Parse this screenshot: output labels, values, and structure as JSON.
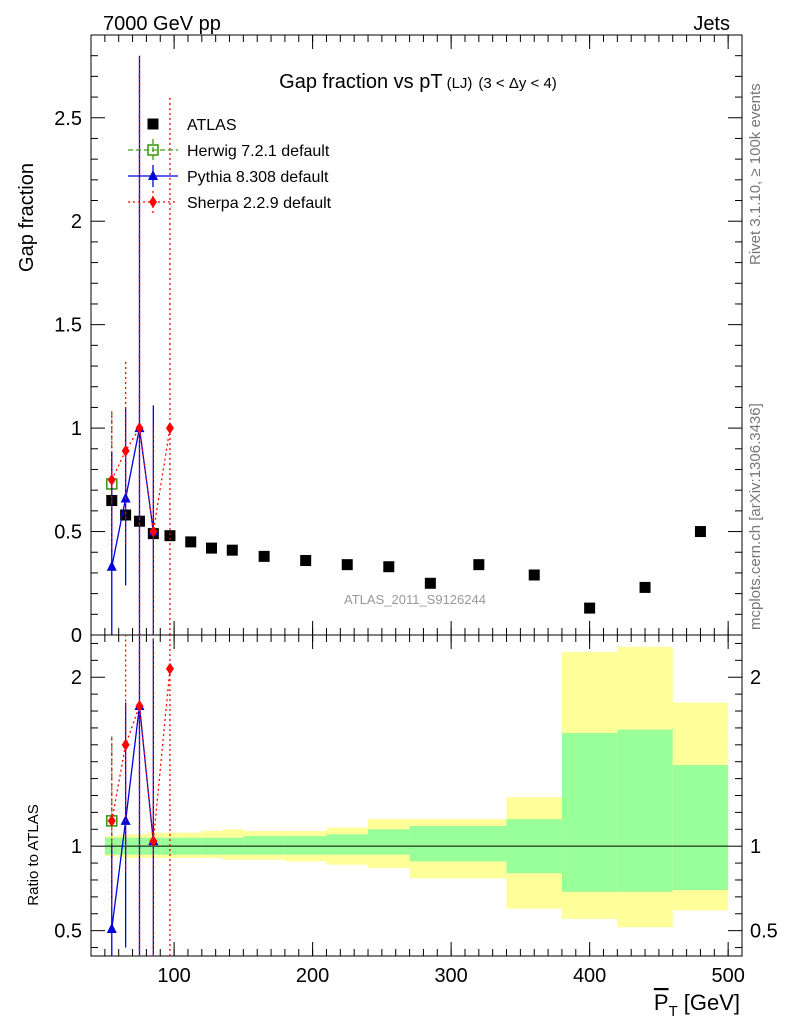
{
  "header": {
    "left": "7000 GeV pp",
    "right": "Jets"
  },
  "side_labels": {
    "rivet": "Rivet 3.1.10, ≥ 100k events",
    "mcplots": "mcplots.cern.ch [arXiv:1306.3436]"
  },
  "chart_data": [
    {
      "type": "scatter",
      "title": "Gap fraction vs pT",
      "title_suffix": "(LJ)",
      "title_range": "(3 < Δy < 4)",
      "ylabel": "Gap fraction",
      "watermark": "ATLAS_2011_S9126244",
      "xlim": [
        40,
        510
      ],
      "ylim": [
        0,
        2.9
      ],
      "yticks": [
        0,
        0.5,
        1,
        1.5,
        2,
        2.5
      ],
      "ytick_labels": [
        "0",
        "0.5",
        "1",
        "1.5",
        "2",
        "2.5"
      ],
      "legend_position": "top-left",
      "series": [
        {
          "name": "ATLAS",
          "color": "#000000",
          "marker": "square",
          "x": [
            55,
            65,
            75,
            85,
            97,
            112,
            127,
            142,
            165,
            195,
            225,
            255,
            285,
            320,
            360,
            400,
            440,
            480
          ],
          "y": [
            0.65,
            0.58,
            0.55,
            0.49,
            0.48,
            0.45,
            0.42,
            0.41,
            0.38,
            0.36,
            0.34,
            0.33,
            0.25,
            0.34,
            0.29,
            0.13,
            0.23,
            0.5
          ]
        },
        {
          "name": "Herwig 7.2.1 default",
          "color": "#3f9a17",
          "marker": "open-square",
          "x": [
            55
          ],
          "y": [
            0.73
          ],
          "err_lo": [
            0.33
          ],
          "err_hi": [
            0.35
          ]
        },
        {
          "name": "Pythia 8.308 default",
          "color": "#0000dd",
          "marker": "triangle",
          "x": [
            55,
            65,
            75,
            85
          ],
          "y": [
            0.33,
            0.66,
            1.0,
            0.5
          ],
          "err_lo": [
            0.33,
            0.42,
            1.0,
            0.5
          ],
          "err_hi": [
            0.55,
            0.44,
            1.8,
            0.61
          ]
        },
        {
          "name": "Sherpa 2.2.9 default",
          "color": "#ff0000",
          "marker": "diamond",
          "x": [
            55,
            65,
            75,
            85,
            97
          ],
          "y": [
            0.75,
            0.89,
            1.0,
            0.5,
            1.0
          ],
          "err_lo": [
            0.33,
            0.45,
            1.0,
            0.5,
            1.0
          ],
          "err_hi": [
            0.33,
            0.43,
            1.8,
            0.5,
            1.6
          ]
        }
      ]
    },
    {
      "type": "scatter",
      "title": "",
      "xlabel": "P̅T [GeV]",
      "xlabel_main": "P",
      "xlabel_sub": "T",
      "xlabel_unit": "[GeV]",
      "ylabel": "Ratio to ATLAS",
      "xlim": [
        40,
        510
      ],
      "ylim": [
        0.35,
        2.25
      ],
      "xticks": [
        100,
        200,
        300,
        400,
        500
      ],
      "xtick_labels": [
        "100",
        "200",
        "300",
        "400",
        "500"
      ],
      "yticks": [
        0.5,
        1,
        2
      ],
      "ytick_labels": [
        "0.5",
        "1",
        "2"
      ],
      "reference_line": 1,
      "bands": {
        "edges": [
          50,
          60,
          70,
          80,
          90,
          105,
          120,
          135,
          150,
          180,
          210,
          240,
          270,
          340,
          380,
          420,
          460,
          500
        ],
        "green_lo": [
          0.95,
          0.95,
          0.95,
          0.95,
          0.95,
          0.95,
          0.95,
          0.95,
          0.95,
          0.95,
          0.95,
          0.95,
          0.91,
          0.84,
          0.73,
          0.73,
          0.74
        ],
        "green_hi": [
          1.05,
          1.05,
          1.05,
          1.05,
          1.05,
          1.05,
          1.05,
          1.05,
          1.06,
          1.06,
          1.07,
          1.1,
          1.12,
          1.16,
          1.67,
          1.69,
          1.48
        ],
        "yellow_lo": [
          0.94,
          0.93,
          0.93,
          0.93,
          0.93,
          0.93,
          0.93,
          0.92,
          0.92,
          0.91,
          0.89,
          0.87,
          0.81,
          0.63,
          0.57,
          0.52,
          0.62
        ],
        "yellow_hi": [
          1.06,
          1.07,
          1.07,
          1.08,
          1.08,
          1.08,
          1.09,
          1.1,
          1.09,
          1.09,
          1.11,
          1.16,
          1.16,
          1.29,
          2.15,
          2.18,
          1.85
        ],
        "green_color": "#99ff99",
        "yellow_color": "#ffff99"
      },
      "series": [
        {
          "name": "Herwig 7.2.1 default",
          "color": "#3f9a17",
          "marker": "open-square",
          "x": [
            55
          ],
          "y": [
            1.15
          ],
          "err_lo": [
            0.47
          ],
          "err_hi": [
            0.5
          ]
        },
        {
          "name": "Pythia 8.308 default",
          "color": "#0000dd",
          "marker": "triangle",
          "x": [
            55,
            65,
            75,
            85
          ],
          "y": [
            0.51,
            1.15,
            1.83,
            1.03
          ],
          "err_lo": [
            0.16,
            0.75,
            1.5,
            0.7
          ],
          "err_hi": [
            0.5,
            0.7,
            1.8,
            1.2
          ]
        },
        {
          "name": "Sherpa 2.2.9 default",
          "color": "#ff0000",
          "marker": "diamond",
          "x": [
            55,
            65,
            75,
            85,
            97
          ],
          "y": [
            1.15,
            1.6,
            1.83,
            1.03,
            2.05
          ],
          "err_lo": [
            0.5,
            0.75,
            1.5,
            0.7,
            1.7
          ],
          "err_hi": [
            0.5,
            0.7,
            1.8,
            1.2,
            1.0
          ]
        }
      ]
    }
  ]
}
